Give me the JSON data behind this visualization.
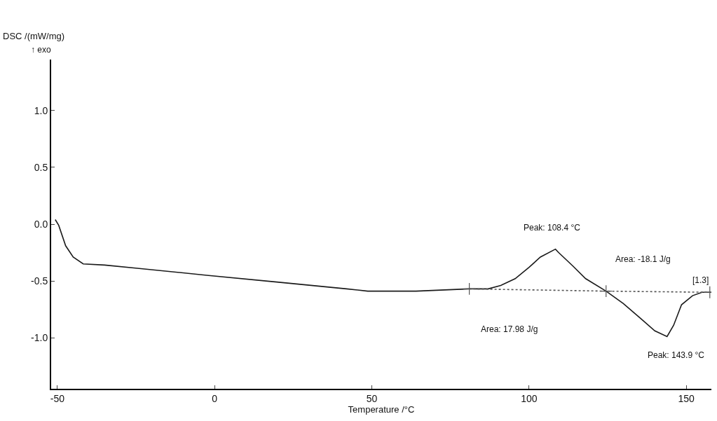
{
  "chart_data": {
    "type": "line",
    "xlabel": "Temperature /°C",
    "ylabel": "DSC /(mW/mg)",
    "xlim": [
      -52,
      158
    ],
    "xticks": [
      -50,
      0,
      50,
      100,
      150
    ],
    "ylim": [
      -1.45,
      1.45
    ],
    "yticks": [
      {
        "value": -1,
        "label": "-1.0"
      },
      {
        "value": -0.5,
        "label": "-0.5"
      },
      {
        "value": 0,
        "label": "0.0"
      },
      {
        "value": 0.5,
        "label": "0.5"
      },
      {
        "value": 1,
        "label": "1.0"
      }
    ],
    "grid": false,
    "series": [
      {
        "color": "#1a1a1a",
        "line_style": "solid",
        "marker": "none",
        "x": [
          -50.7,
          -49.6,
          -47.4,
          -45,
          -41.8,
          -35,
          -24,
          -2.5,
          19.8,
          42,
          48.7,
          64,
          81,
          87,
          91,
          95.6,
          100,
          103.6,
          108.4,
          109.4,
          114,
          118,
          124.5,
          130,
          135.5,
          140,
          143.9,
          146,
          148.5,
          152,
          155,
          158
        ],
        "values": [
          0.04,
          -0.01,
          -0.19,
          -0.29,
          -0.35,
          -0.36,
          -0.39,
          -0.45,
          -0.51,
          -0.57,
          -0.59,
          -0.59,
          -0.57,
          -0.57,
          -0.54,
          -0.48,
          -0.38,
          -0.29,
          -0.22,
          -0.25,
          -0.37,
          -0.48,
          -0.59,
          -0.7,
          -0.83,
          -0.94,
          -0.99,
          -0.89,
          -0.71,
          -0.63,
          -0.6,
          -0.6
        ]
      },
      {
        "color": "#555555",
        "line_style": "dotted",
        "marker": "cross",
        "x": [
          81,
          124.5,
          157.5
        ],
        "values": [
          -0.57,
          -0.59,
          -0.6
        ]
      }
    ],
    "annotations": [
      "↑ exo",
      {
        "text": "Peak: 108.4 °C",
        "x": 108.4,
        "y": -0.22
      },
      "Area: -18.1 J/g",
      "Area: 17.98 J/g",
      {
        "text": "Peak: 143.9 °C",
        "x": 143.9,
        "y": -0.99
      },
      "[1.3]"
    ]
  }
}
